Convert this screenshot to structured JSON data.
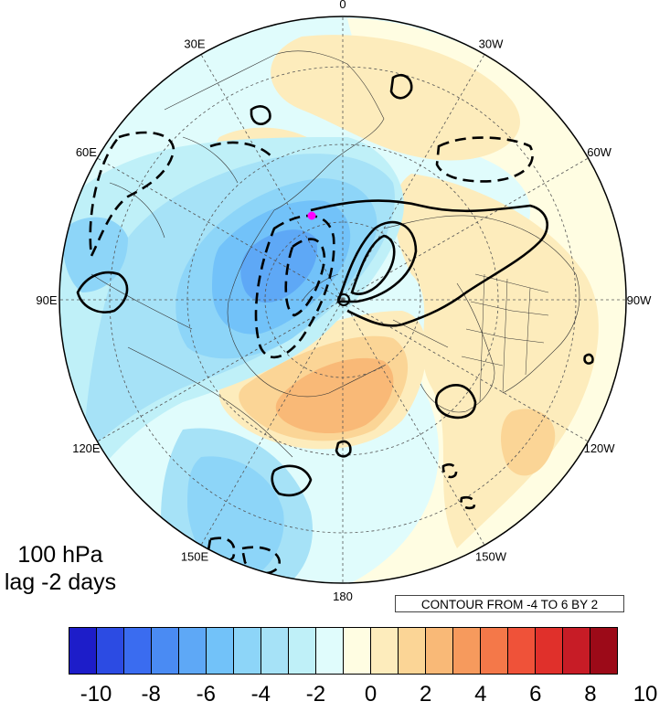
{
  "title": {
    "line1": "100 hPa",
    "line2": "lag -2 days"
  },
  "contour_info": "CONTOUR FROM -4 TO 6 BY 2",
  "longitude_labels": [
    {
      "deg": 0,
      "text": "0"
    },
    {
      "deg": 30,
      "text": "30E"
    },
    {
      "deg": 60,
      "text": "60E"
    },
    {
      "deg": 90,
      "text": "90E"
    },
    {
      "deg": 120,
      "text": "120E"
    },
    {
      "deg": 150,
      "text": "150E"
    },
    {
      "deg": 180,
      "text": "180"
    },
    {
      "deg": -150,
      "text": "150W"
    },
    {
      "deg": -120,
      "text": "120W"
    },
    {
      "deg": -90,
      "text": "90W"
    },
    {
      "deg": -60,
      "text": "60W"
    },
    {
      "deg": -30,
      "text": "30W"
    }
  ],
  "colorbar": {
    "colors": [
      "#1d1dc9",
      "#2c4be3",
      "#3a6cf0",
      "#4a8bf3",
      "#5ea8f6",
      "#72c2f9",
      "#8dd5f8",
      "#a6e2f7",
      "#bff0f8",
      "#e0fcfc",
      "#fffde2",
      "#fdecbc",
      "#fbd596",
      "#f9b977",
      "#f69a5d",
      "#f47849",
      "#ef5239",
      "#e0302b",
      "#c71c26",
      "#9c0a18"
    ],
    "labels": [
      "-10",
      "-8",
      "-6",
      "-4",
      "-2",
      "0",
      "2",
      "4",
      "6",
      "8",
      "10"
    ]
  },
  "marker_color": "#ff00ff"
}
